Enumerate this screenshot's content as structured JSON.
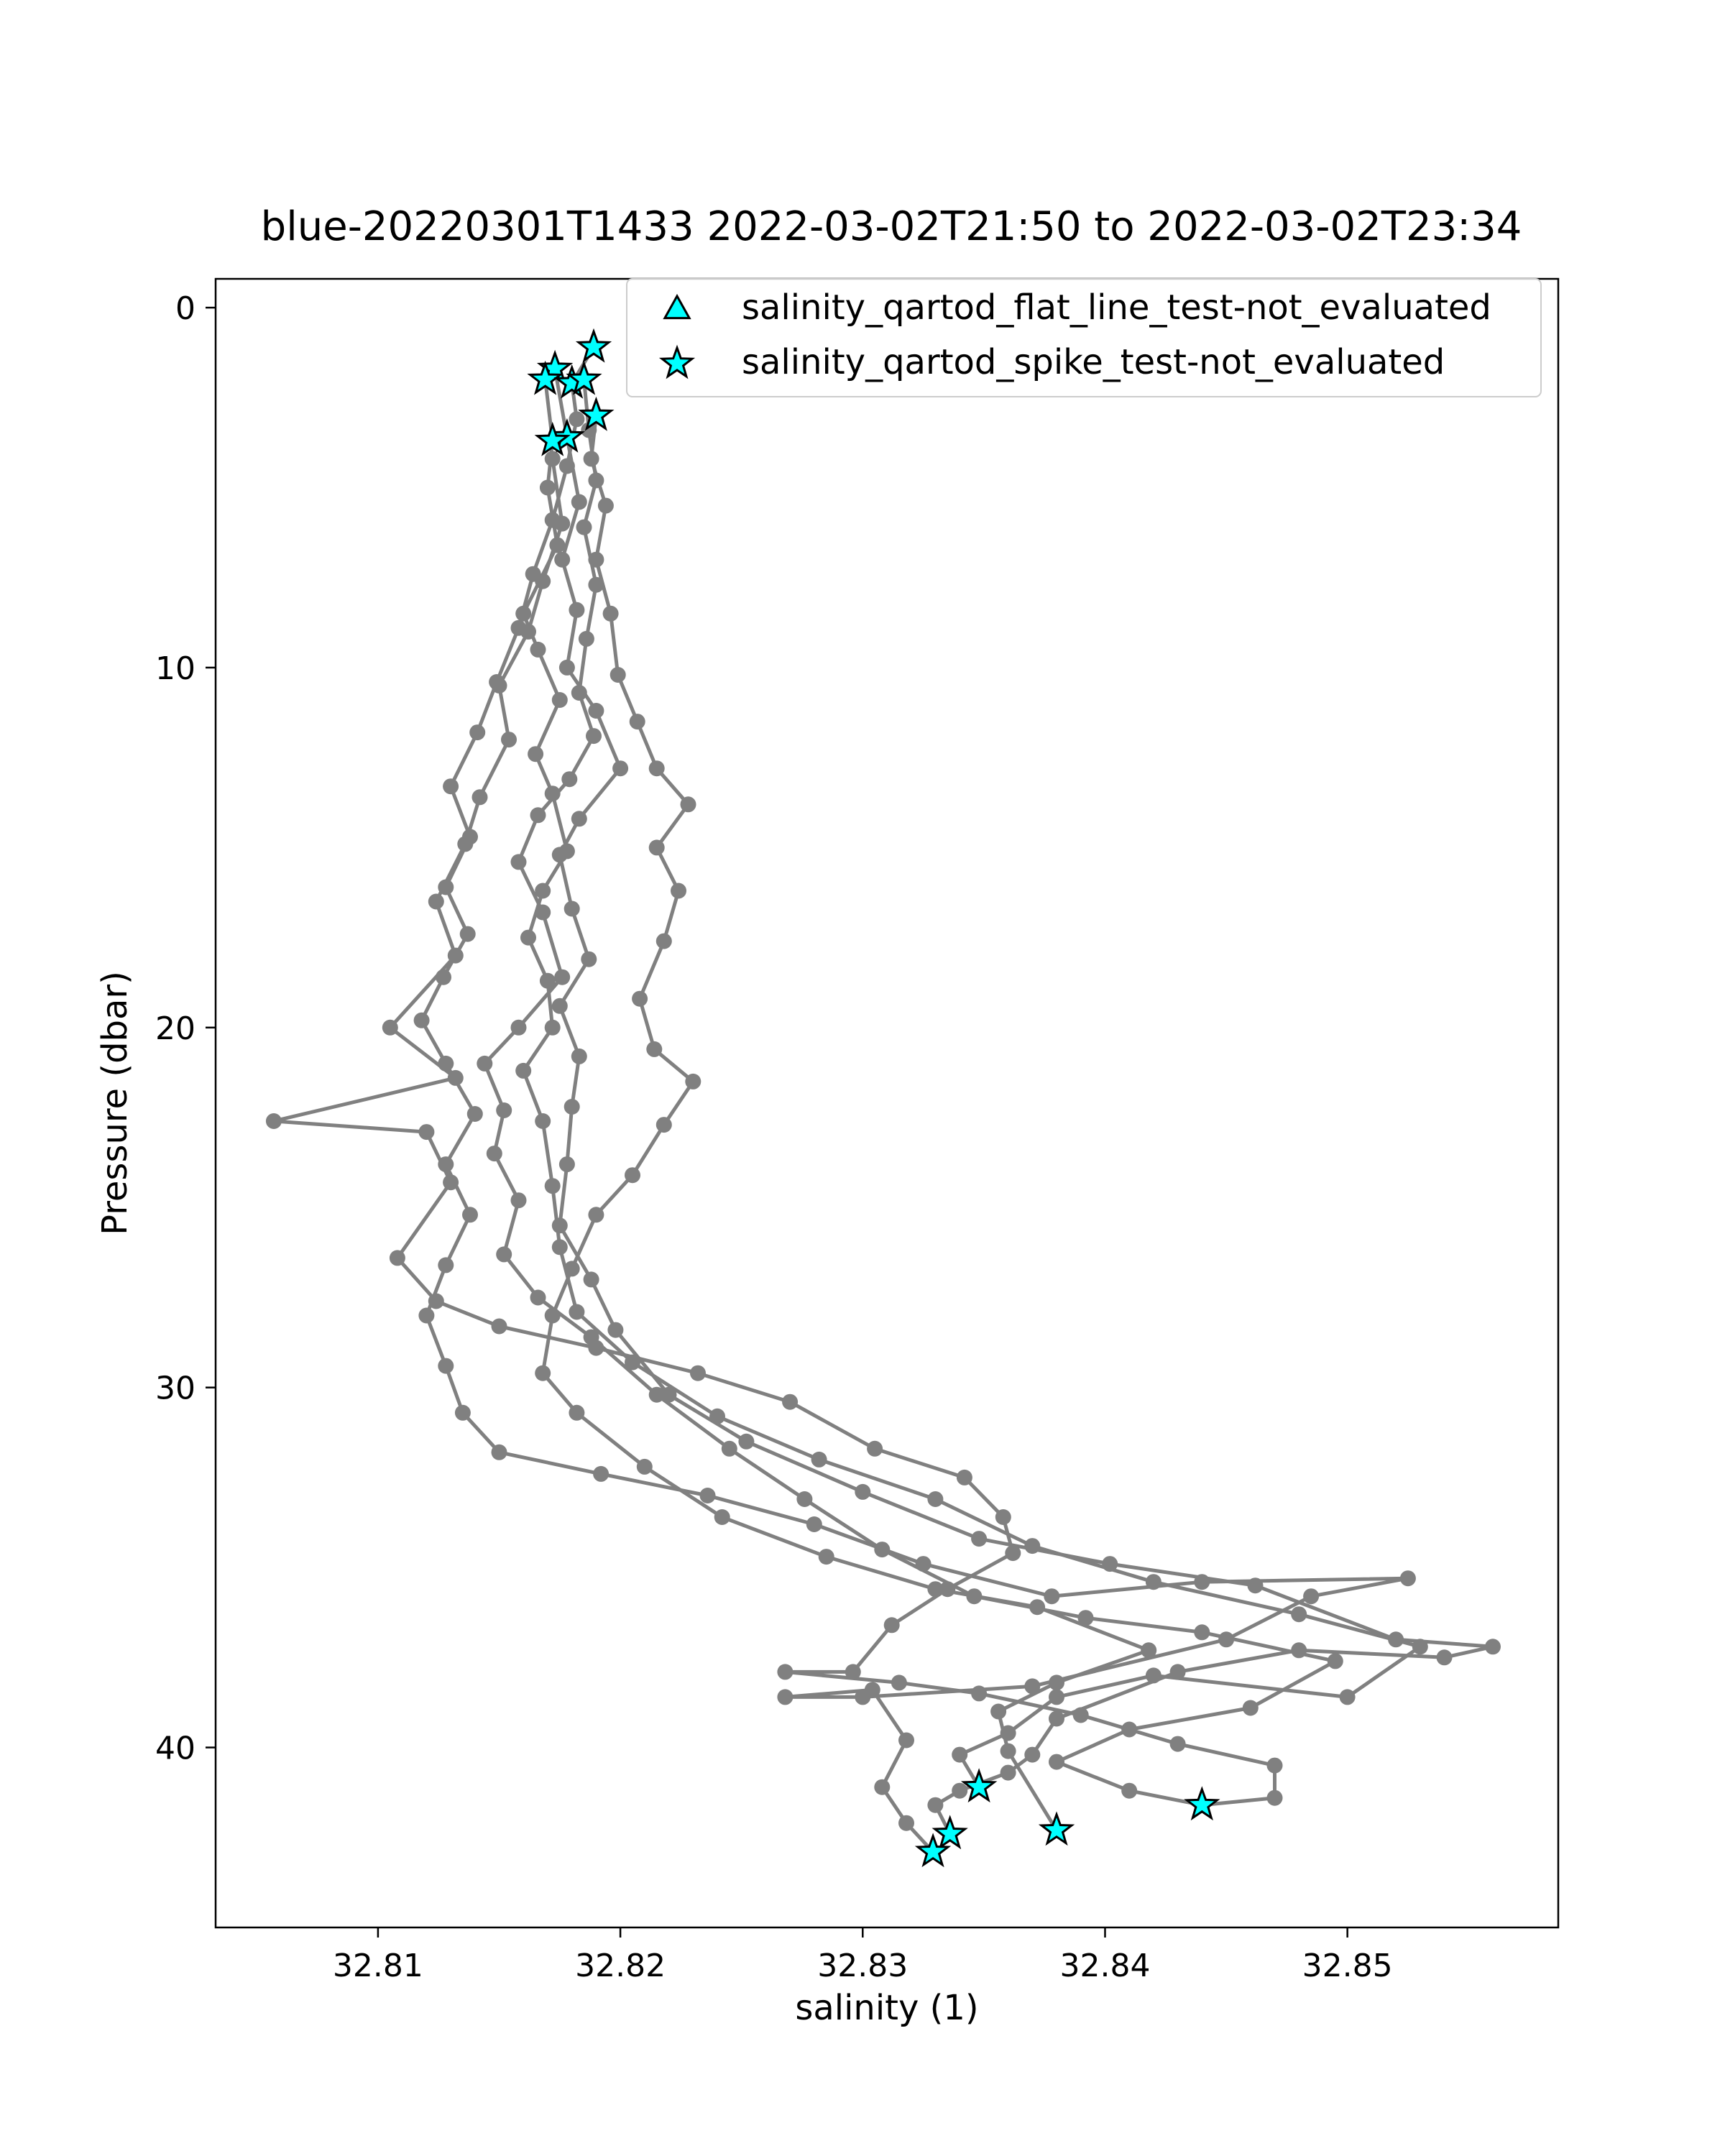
{
  "chart_data": {
    "type": "scatter",
    "title": "blue-20220301T1433 2022-03-02T21:50 to 2022-03-02T23:34",
    "xlabel": "salinity (1)",
    "ylabel": "Pressure (dbar)",
    "xlim": [
      32.8033,
      32.8587
    ],
    "ylim": [
      45.0,
      -0.8
    ],
    "y_inverted": true,
    "x_ticks": [
      "32.81",
      "32.82",
      "32.83",
      "32.84",
      "32.85"
    ],
    "x_tick_values": [
      32.81,
      32.82,
      32.83,
      32.84,
      32.85
    ],
    "y_ticks": [
      "0",
      "10",
      "20",
      "30",
      "40"
    ],
    "y_tick_values": [
      0,
      10,
      20,
      30,
      40
    ],
    "grid": false,
    "legend_position": "top-right",
    "colors": {
      "profile_line": "#808080",
      "flag_fill": "#00ffff",
      "flag_edge": "#000000",
      "axes": "#000000"
    },
    "legend": [
      {
        "label": "salinity_qartod_flat_line_test-not_evaluated",
        "marker": "triangle"
      },
      {
        "label": "salinity_qartod_spike_test-not_evaluated",
        "marker": "star"
      }
    ],
    "series": [
      {
        "name": "salinity_qartod_spike_test-not_evaluated",
        "marker": "star",
        "points": [
          [
            32.8189,
            1.1
          ],
          [
            32.8173,
            1.7
          ],
          [
            32.8169,
            2.0
          ],
          [
            32.818,
            2.1
          ],
          [
            32.8185,
            2.0
          ],
          [
            32.819,
            3.0
          ],
          [
            32.8178,
            3.6
          ],
          [
            32.8172,
            3.7
          ],
          [
            32.8348,
            41.1
          ],
          [
            32.844,
            41.6
          ],
          [
            32.838,
            42.3
          ],
          [
            32.8336,
            42.4
          ],
          [
            32.8329,
            42.9
          ]
        ]
      }
    ],
    "profiles": [
      [
        [
          32.8169,
          2.0
        ],
        [
          32.8172,
          3.7
        ],
        [
          32.817,
          5.0
        ],
        [
          32.8174,
          6.6
        ],
        [
          32.816,
          8.5
        ],
        [
          32.8166,
          9.5
        ],
        [
          32.8175,
          10.9
        ],
        [
          32.8165,
          12.4
        ],
        [
          32.8172,
          13.5
        ],
        [
          32.8178,
          15.1
        ],
        [
          32.8168,
          16.2
        ],
        [
          32.8162,
          17.5
        ],
        [
          32.817,
          18.7
        ],
        [
          32.8172,
          20.0
        ],
        [
          32.816,
          21.2
        ],
        [
          32.8168,
          22.6
        ],
        [
          32.8172,
          24.4
        ],
        [
          32.8175,
          26.1
        ],
        [
          32.8182,
          27.9
        ],
        [
          32.8205,
          29.3
        ],
        [
          32.824,
          30.8
        ],
        [
          32.8282,
          32.0
        ],
        [
          32.833,
          33.1
        ],
        [
          32.837,
          34.4
        ],
        [
          32.842,
          35.4
        ],
        [
          32.848,
          36.3
        ],
        [
          32.853,
          37.2
        ],
        [
          32.85,
          38.6
        ],
        [
          32.842,
          38.0
        ],
        [
          32.838,
          38.6
        ],
        [
          32.836,
          39.6
        ],
        [
          32.834,
          40.2
        ],
        [
          32.8348,
          41.1
        ]
      ],
      [
        [
          32.8173,
          1.7
        ],
        [
          32.8178,
          3.6
        ],
        [
          32.8183,
          5.4
        ],
        [
          32.8176,
          7.0
        ],
        [
          32.8182,
          8.4
        ],
        [
          32.8178,
          10.0
        ],
        [
          32.819,
          11.2
        ],
        [
          32.82,
          12.8
        ],
        [
          32.8183,
          14.2
        ],
        [
          32.8175,
          15.2
        ],
        [
          32.818,
          16.7
        ],
        [
          32.8187,
          18.1
        ],
        [
          32.8175,
          19.4
        ],
        [
          32.8183,
          20.8
        ],
        [
          32.818,
          22.2
        ],
        [
          32.8178,
          23.8
        ],
        [
          32.8175,
          25.5
        ],
        [
          32.8188,
          27.0
        ],
        [
          32.8198,
          28.4
        ],
        [
          32.822,
          30.2
        ],
        [
          32.8252,
          31.5
        ],
        [
          32.83,
          32.9
        ],
        [
          32.8348,
          34.2
        ],
        [
          32.8402,
          34.9
        ],
        [
          32.8462,
          35.5
        ],
        [
          32.852,
          37.0
        ],
        [
          32.856,
          37.2
        ],
        [
          32.854,
          37.5
        ],
        [
          32.848,
          37.3
        ],
        [
          32.843,
          37.9
        ],
        [
          32.838,
          39.2
        ],
        [
          32.837,
          40.2
        ],
        [
          32.836,
          40.7
        ],
        [
          32.834,
          41.2
        ],
        [
          32.833,
          41.6
        ],
        [
          32.8336,
          42.4
        ]
      ],
      [
        [
          32.8185,
          2.0
        ],
        [
          32.8187,
          3.4
        ],
        [
          32.819,
          4.8
        ],
        [
          32.8185,
          6.1
        ],
        [
          32.819,
          7.7
        ],
        [
          32.8186,
          9.2
        ],
        [
          32.8183,
          10.7
        ],
        [
          32.8189,
          11.9
        ],
        [
          32.8179,
          13.1
        ],
        [
          32.8166,
          14.1
        ],
        [
          32.8158,
          15.4
        ],
        [
          32.8168,
          16.8
        ],
        [
          32.8176,
          18.6
        ],
        [
          32.8158,
          20.0
        ],
        [
          32.8144,
          21.0
        ],
        [
          32.8152,
          22.3
        ],
        [
          32.8148,
          23.5
        ],
        [
          32.8158,
          24.8
        ],
        [
          32.8152,
          26.3
        ],
        [
          32.8166,
          27.5
        ],
        [
          32.8188,
          28.6
        ],
        [
          32.8215,
          30.2
        ],
        [
          32.8245,
          31.7
        ],
        [
          32.8276,
          33.1
        ],
        [
          32.8308,
          34.5
        ],
        [
          32.8346,
          35.8
        ],
        [
          32.8392,
          36.4
        ],
        [
          32.844,
          36.8
        ],
        [
          32.8495,
          37.6
        ],
        [
          32.846,
          38.9
        ],
        [
          32.841,
          39.5
        ],
        [
          32.838,
          40.4
        ],
        [
          32.841,
          41.2
        ],
        [
          32.844,
          41.6
        ]
      ],
      [
        [
          32.819,
          3.0
        ],
        [
          32.8188,
          4.2
        ],
        [
          32.8194,
          5.5
        ],
        [
          32.819,
          7.0
        ],
        [
          32.8196,
          8.5
        ],
        [
          32.8199,
          10.2
        ],
        [
          32.8207,
          11.5
        ],
        [
          32.8215,
          12.8
        ],
        [
          32.8228,
          13.8
        ],
        [
          32.8215,
          15.0
        ],
        [
          32.8224,
          16.2
        ],
        [
          32.8218,
          17.6
        ],
        [
          32.8208,
          19.2
        ],
        [
          32.8214,
          20.6
        ],
        [
          32.823,
          21.5
        ],
        [
          32.8218,
          22.7
        ],
        [
          32.8205,
          24.1
        ],
        [
          32.819,
          25.2
        ],
        [
          32.818,
          26.7
        ],
        [
          32.8172,
          28.0
        ],
        [
          32.8168,
          29.6
        ],
        [
          32.8182,
          30.7
        ],
        [
          32.821,
          32.2
        ],
        [
          32.8242,
          33.6
        ],
        [
          32.8285,
          34.7
        ],
        [
          32.833,
          35.6
        ],
        [
          32.8372,
          36.1
        ],
        [
          32.8418,
          37.3
        ],
        [
          32.838,
          38.2
        ],
        [
          32.8356,
          39.0
        ],
        [
          32.836,
          40.1
        ],
        [
          32.838,
          42.3
        ]
      ],
      [
        [
          32.8189,
          1.1
        ],
        [
          32.818,
          2.1
        ],
        [
          32.8182,
          3.1
        ],
        [
          32.8178,
          4.4
        ],
        [
          32.8172,
          5.9
        ],
        [
          32.8164,
          7.4
        ],
        [
          32.8158,
          8.9
        ],
        [
          32.8149,
          10.4
        ],
        [
          32.8141,
          11.8
        ],
        [
          32.813,
          13.3
        ],
        [
          32.8138,
          14.7
        ],
        [
          32.8128,
          16.1
        ],
        [
          32.8137,
          17.4
        ],
        [
          32.8127,
          18.6
        ],
        [
          32.8118,
          19.8
        ],
        [
          32.8128,
          21.0
        ],
        [
          32.814,
          22.4
        ],
        [
          32.8128,
          23.8
        ],
        [
          32.8138,
          25.2
        ],
        [
          32.8128,
          26.6
        ],
        [
          32.812,
          28.0
        ],
        [
          32.8128,
          29.4
        ],
        [
          32.8135,
          30.7
        ],
        [
          32.815,
          31.8
        ],
        [
          32.8192,
          32.4
        ],
        [
          32.8236,
          33.0
        ],
        [
          32.828,
          33.8
        ],
        [
          32.8325,
          34.9
        ],
        [
          32.8378,
          35.8
        ],
        [
          32.844,
          35.4
        ],
        [
          32.8525,
          35.3
        ],
        [
          32.8485,
          35.8
        ],
        [
          32.845,
          37.0
        ],
        [
          32.837,
          38.3
        ],
        [
          32.83,
          38.6
        ],
        [
          32.8268,
          38.6
        ],
        [
          32.8304,
          38.4
        ],
        [
          32.8318,
          39.8
        ],
        [
          32.8308,
          41.1
        ],
        [
          32.8318,
          42.1
        ],
        [
          32.8329,
          42.9
        ]
      ],
      [
        [
          32.8172,
          4.2
        ],
        [
          32.8176,
          6.0
        ],
        [
          32.8168,
          7.6
        ],
        [
          32.8162,
          9.0
        ],
        [
          32.815,
          10.5
        ],
        [
          32.8154,
          12.0
        ],
        [
          32.8142,
          13.6
        ],
        [
          32.8136,
          14.9
        ],
        [
          32.8124,
          16.5
        ],
        [
          32.8132,
          18.0
        ],
        [
          32.8105,
          20.0
        ],
        [
          32.8132,
          21.4
        ],
        [
          32.8057,
          22.6
        ],
        [
          32.812,
          22.9
        ],
        [
          32.813,
          24.3
        ],
        [
          32.8108,
          26.4
        ],
        [
          32.8124,
          27.6
        ],
        [
          32.815,
          28.3
        ],
        [
          32.819,
          28.9
        ],
        [
          32.8232,
          29.6
        ],
        [
          32.827,
          30.4
        ],
        [
          32.8305,
          31.7
        ],
        [
          32.8342,
          32.5
        ],
        [
          32.8358,
          33.6
        ],
        [
          32.8362,
          34.6
        ],
        [
          32.8335,
          35.6
        ],
        [
          32.8312,
          36.6
        ],
        [
          32.8296,
          37.9
        ],
        [
          32.8268,
          37.9
        ],
        [
          32.8315,
          38.2
        ],
        [
          32.8348,
          38.5
        ],
        [
          32.839,
          39.1
        ],
        [
          32.843,
          39.9
        ],
        [
          32.847,
          40.5
        ],
        [
          32.847,
          41.4
        ],
        [
          32.844,
          41.6
        ]
      ]
    ]
  }
}
